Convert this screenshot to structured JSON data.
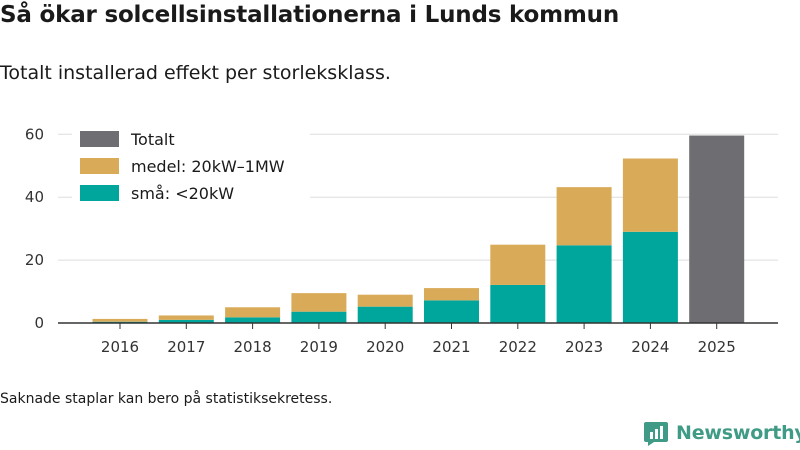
{
  "title": "Så ökar solcellsinstallationerna i Lunds kommun",
  "subtitle": "Totalt installerad effekt per storleksklass.",
  "note": "Saknade staplar kan bero på statistiksekretess.",
  "brand": "Newsworthy",
  "colors": {
    "small": "#00a69c",
    "medium": "#d9ab58",
    "total": "#6d6d72",
    "grid": "#dddddd",
    "axis": "#333333",
    "brand": "#3f9b86"
  },
  "chart_data": {
    "type": "bar",
    "stacked": true,
    "title": "Så ökar solcellsinstallationerna i Lunds kommun",
    "subtitle": "Totalt installerad effekt per storleksklass.",
    "xlabel": "",
    "ylabel": "",
    "ylim": [
      0,
      62
    ],
    "yticks": [
      0,
      20,
      40,
      60
    ],
    "grid": true,
    "legend_position": "top-left",
    "categories": [
      "2016",
      "2017",
      "2018",
      "2019",
      "2020",
      "2021",
      "2022",
      "2023",
      "2024",
      "2025"
    ],
    "series": [
      {
        "name": "små: <20kW",
        "color": "small",
        "values": [
          0.4,
          1.0,
          1.8,
          3.6,
          5.2,
          7.2,
          12.1,
          24.7,
          29.0,
          null
        ]
      },
      {
        "name": "medel: 20kW–1MW",
        "color": "medium",
        "values": [
          0.9,
          1.4,
          3.2,
          5.9,
          3.8,
          3.9,
          12.8,
          18.5,
          23.3,
          null
        ]
      },
      {
        "name": "Totalt",
        "color": "total",
        "values": [
          null,
          null,
          null,
          null,
          null,
          null,
          null,
          null,
          null,
          59.6
        ]
      }
    ],
    "legend": [
      "Totalt",
      "medel: 20kW–1MW",
      "små: <20kW"
    ]
  }
}
